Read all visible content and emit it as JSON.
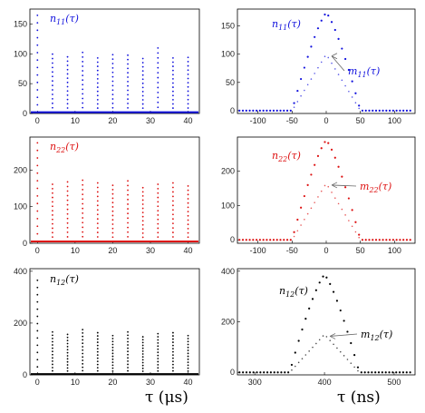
{
  "chart_data": [
    {
      "type": "scatter",
      "panel": "n11-long",
      "color": "#1010dd",
      "label": "n11(τ)",
      "xlim": [
        -2,
        43
      ],
      "ylim": [
        0,
        175
      ],
      "xticks": [
        "0",
        "10",
        "20",
        "30",
        "40"
      ],
      "yticks": [
        "0",
        "50",
        "100",
        "150"
      ],
      "series": [
        {
          "peaks_x": [
            0,
            4,
            8,
            12,
            16,
            20,
            24,
            28,
            32,
            36,
            40
          ],
          "peaks_y": [
            175,
            105,
            100,
            108,
            98,
            104,
            103,
            97,
            116,
            98,
            99
          ],
          "baseline": 2
        }
      ]
    },
    {
      "type": "scatter",
      "panel": "n11-short",
      "color": "#1010dd",
      "labels": [
        "n11(τ)",
        "m11(τ)"
      ],
      "xlim": [
        -130,
        130
      ],
      "ylim": [
        -5,
        180
      ],
      "xticks": [
        "-100",
        "-50",
        "0",
        "50",
        "100"
      ],
      "yticks": [
        "0",
        "50",
        "100",
        "150"
      ],
      "series": [
        {
          "name": "n11",
          "center": 0,
          "width": 50,
          "peak": 173
        },
        {
          "name": "m11",
          "center": 0,
          "width": 50,
          "peak": 100
        }
      ]
    },
    {
      "type": "scatter",
      "panel": "n22-long",
      "color": "#dd1010",
      "label": "n22(τ)",
      "xlim": [
        -2,
        43
      ],
      "ylim": [
        0,
        290
      ],
      "xticks": [
        "0",
        "10",
        "20",
        "30",
        "40"
      ],
      "yticks": [
        "0",
        "100",
        "200"
      ],
      "series": [
        {
          "peaks_x": [
            0,
            4,
            8,
            12,
            16,
            20,
            24,
            28,
            32,
            36,
            40
          ],
          "peaks_y": [
            290,
            168,
            175,
            180,
            172,
            165,
            178,
            158,
            168,
            172,
            163
          ],
          "baseline": 5
        }
      ]
    },
    {
      "type": "scatter",
      "panel": "n22-short",
      "color": "#dd1010",
      "labels": [
        "n22(τ)",
        "m22(τ)"
      ],
      "xlim": [
        -130,
        130
      ],
      "ylim": [
        -10,
        300
      ],
      "xticks": [
        "-100",
        "-50",
        "0",
        "50",
        "100"
      ],
      "yticks": [
        "0",
        "100",
        "200"
      ],
      "series": [
        {
          "name": "n22",
          "center": 0,
          "width": 50,
          "peak": 290
        },
        {
          "name": "m22",
          "center": 0,
          "width": 50,
          "peak": 165
        }
      ]
    },
    {
      "type": "scatter",
      "panel": "n12-long",
      "color": "#000000",
      "label": "n12(τ)",
      "xlim": [
        -2,
        43
      ],
      "ylim": [
        0,
        410
      ],
      "xticks": [
        "0",
        "10",
        "20",
        "30",
        "40"
      ],
      "yticks": [
        "0",
        "200",
        "400"
      ],
      "series": [
        {
          "peaks_x": [
            0,
            4,
            8,
            12,
            16,
            20,
            24,
            28,
            32,
            36,
            40
          ],
          "peaks_y": [
            390,
            175,
            165,
            185,
            172,
            160,
            175,
            155,
            168,
            172,
            160
          ],
          "baseline": 3
        }
      ]
    },
    {
      "type": "scatter",
      "panel": "n12-short",
      "color": "#000000",
      "labels": [
        "n12(τ)",
        "m12(τ)"
      ],
      "xlim": [
        275,
        530
      ],
      "ylim": [
        -10,
        410
      ],
      "xticks": [
        "300",
        "400",
        "500"
      ],
      "yticks": [
        "0",
        "200",
        "400"
      ],
      "series": [
        {
          "name": "n12",
          "center": 400,
          "width": 50,
          "peak": 385
        },
        {
          "name": "m12",
          "center": 400,
          "width": 50,
          "peak": 150
        }
      ]
    }
  ],
  "x_axis_labels": {
    "left": "τ (μs)",
    "right": "τ (ns)"
  }
}
